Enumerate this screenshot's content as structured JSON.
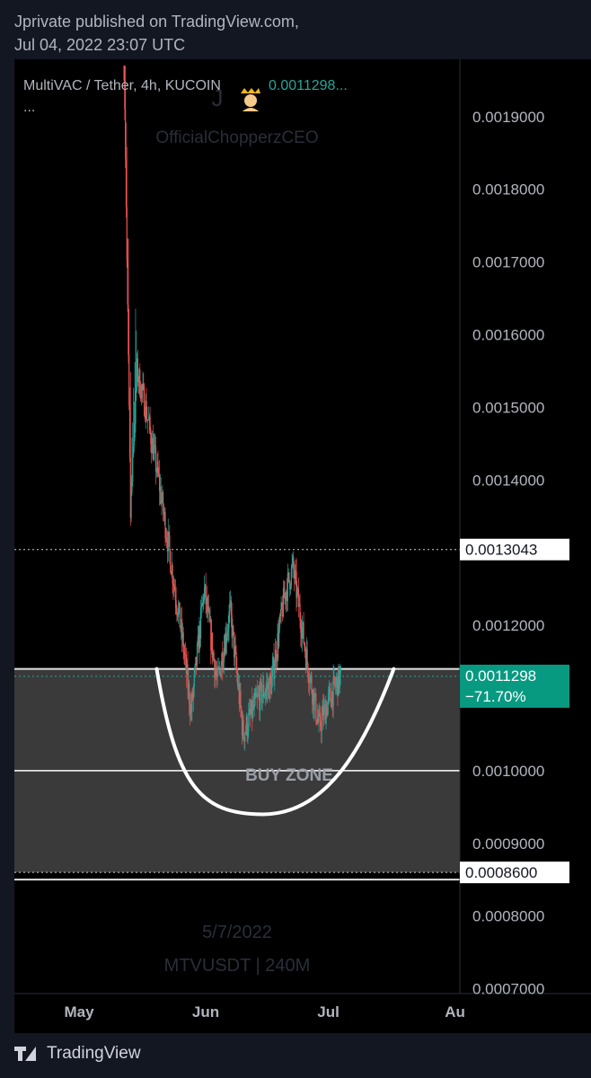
{
  "publish": {
    "line1": "Jprivate published on TradingView.com,",
    "line2": "Jul 04, 2022 23:07 UTC"
  },
  "legend": {
    "symbol": "MultiVAC / Tether, 4h, KUCOIN",
    "price": "0.0011298...",
    "more": "..."
  },
  "watermark": {
    "avatar_letter": "J",
    "avatar_icon": "crown-person-icon",
    "username": "OfficialChopperzCEO",
    "date": "5/7/2022",
    "ticker": "MTVUSDT | 240M"
  },
  "footer": {
    "brand": "TradingView"
  },
  "colors": {
    "up": "#26a69a",
    "down": "#ef5350",
    "bg": "#000000",
    "zone": "#3a3a3a",
    "price_tag": "#089981"
  },
  "chart_data": {
    "type": "candlestick",
    "x_ticks": [
      "May",
      "Jun",
      "Jul",
      "Aug"
    ],
    "x_tick_labels": [
      "May",
      "Jun",
      "Jul",
      "Au"
    ],
    "y_ticks": [
      "0.0019000",
      "0.0018000",
      "0.0017000",
      "0.0016000",
      "0.0015000",
      "0.0014000",
      "0.0012000",
      "0.0010000",
      "0.0009000",
      "0.0008000",
      "0.0007000"
    ],
    "y_tick_values": [
      0.0019,
      0.0018,
      0.0017,
      0.0016,
      0.0015,
      0.0014,
      0.0012,
      0.001,
      0.0009,
      0.0008,
      0.0007
    ],
    "ylim": [
      0.00069,
      0.00197
    ],
    "x_dates": [
      "2022-05-01",
      "2022-06-01",
      "2022-07-01",
      "2022-08-01"
    ],
    "price_range": {
      "start": "2022-05-12",
      "end": "2022-07-04",
      "open_high": 0.00197,
      "low": 0.00101,
      "close": 0.0011298
    },
    "levels": [
      {
        "price": 0.0013043,
        "label": "0.0013043",
        "style": "dotted"
      },
      {
        "price": 0.00086,
        "label": "0.0008600",
        "style": "dotted"
      }
    ],
    "current_price": {
      "price": 0.0011298,
      "label": "0.0011298",
      "change": "−71.70%"
    },
    "buy_zone": {
      "label": "BUY ZONE",
      "top": 0.00114,
      "mid": 0.001,
      "bottom": 0.00086
    },
    "cup_curve": {
      "start": {
        "date": "2022-05-20",
        "price": 0.00114
      },
      "bottom": {
        "date": "2022-06-15",
        "price": 0.00094
      },
      "end": {
        "date": "2022-07-17",
        "price": 0.00114
      }
    }
  }
}
